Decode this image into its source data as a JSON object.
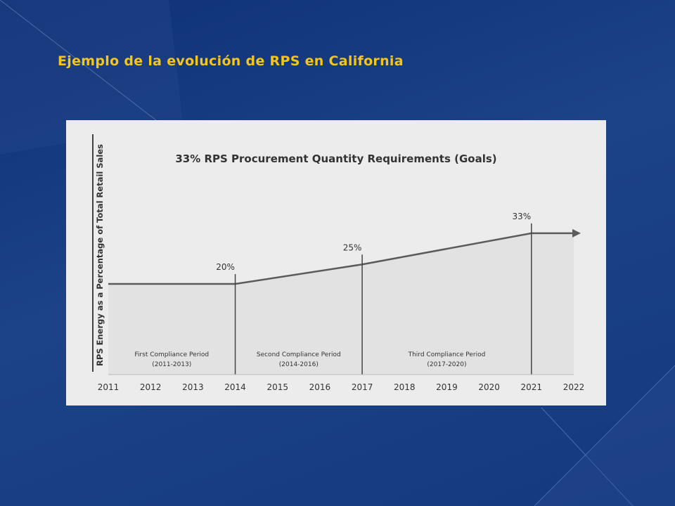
{
  "slide": {
    "title": "Ejemplo de la evolución de RPS en California"
  },
  "chart_data": {
    "type": "area",
    "title": "33% RPS Procurement Quantity Requirements (Goals)",
    "xlabel": "",
    "ylabel": "RPS Energy as a Percentage of Total Retail Sales",
    "x_ticks": [
      "2011",
      "2012",
      "2013",
      "2014",
      "2015",
      "2016",
      "2017",
      "2018",
      "2019",
      "2020",
      "2021",
      "2022"
    ],
    "x": [
      2011,
      2014,
      2017,
      2021,
      2022
    ],
    "y": [
      20,
      20,
      25,
      33,
      33
    ],
    "annotations": [
      {
        "x": 2014,
        "label": "20%"
      },
      {
        "x": 2017,
        "label": "25%"
      },
      {
        "x": 2021,
        "label": "33%"
      }
    ],
    "periods": [
      {
        "name": "First Compliance Period",
        "range": "(2011-2013)",
        "x_center": 2012.5
      },
      {
        "name": "Second Compliance Period",
        "range": "(2014-2016)",
        "x_center": 2015.5
      },
      {
        "name": "Third Compliance Period",
        "range": "(2017-2020)",
        "x_center": 2019
      }
    ],
    "dividers": [
      2014,
      2017,
      2021
    ],
    "xlim": [
      2011,
      2022
    ],
    "arrow_at_end": true,
    "colors": {
      "fill": "#e2e2e2",
      "line": "#5b5b5b",
      "text": "#333333"
    }
  }
}
